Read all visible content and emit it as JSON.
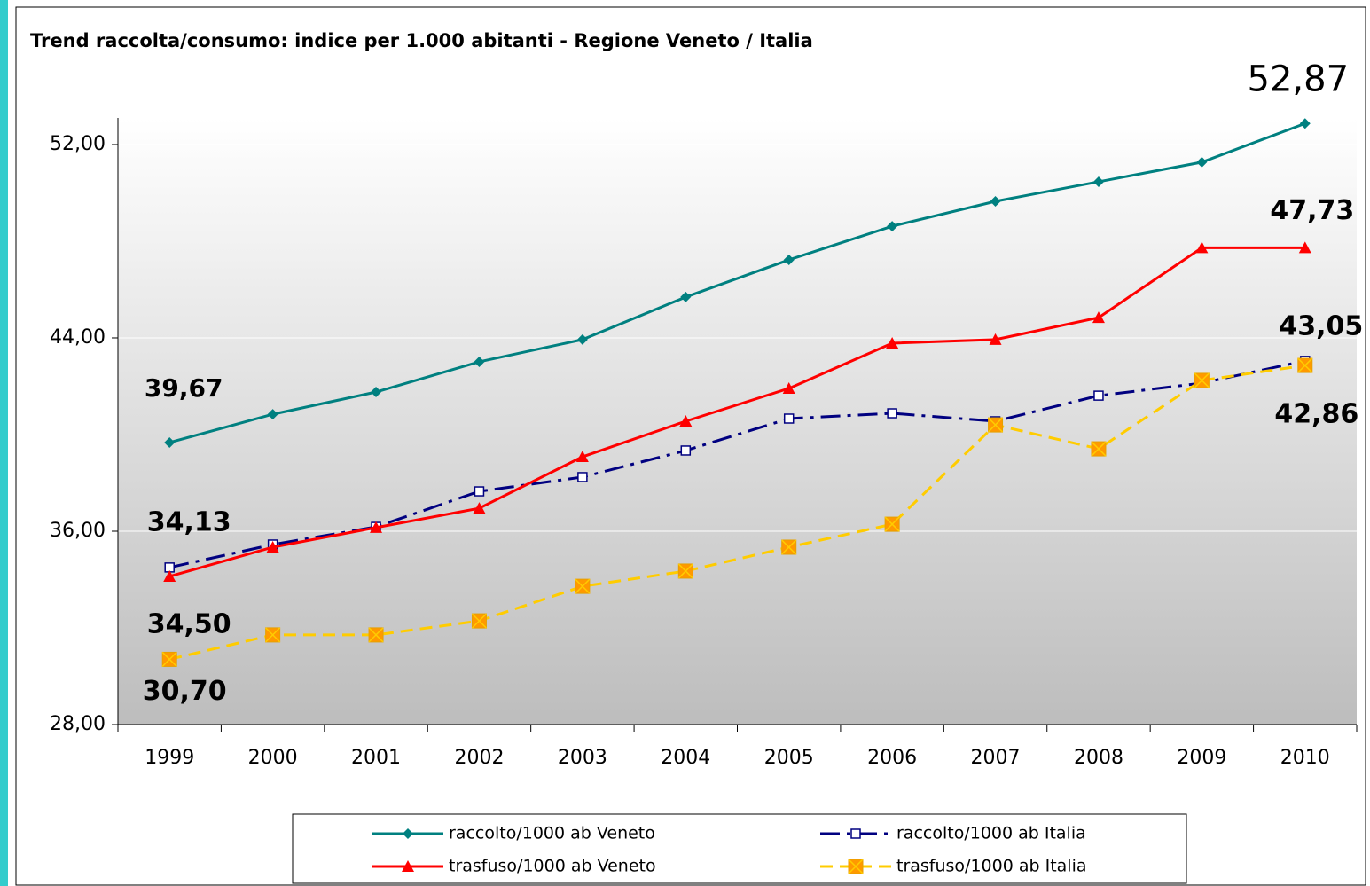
{
  "chart_data": {
    "type": "line",
    "title": "Trend raccolta/consumo: indice per 1.000 abitanti - Regione Veneto / Italia",
    "categories": [
      "1999",
      "2000",
      "2001",
      "2002",
      "2003",
      "2004",
      "2005",
      "2006",
      "2007",
      "2008",
      "2009",
      "2010"
    ],
    "ylim": [
      28,
      53.1
    ],
    "yticks": [
      {
        "value": 28,
        "label": "28,00"
      },
      {
        "value": 36,
        "label": "36,00"
      },
      {
        "value": 44,
        "label": "44,00"
      },
      {
        "value": 52,
        "label": "52,00"
      }
    ],
    "grid": true,
    "legend": "bottom",
    "series": [
      {
        "name": "raccolto/1000 ab Veneto",
        "color": "#008080",
        "marker": "diamond",
        "dash": "solid",
        "values": [
          39.67,
          40.84,
          41.76,
          43.01,
          43.93,
          45.69,
          47.23,
          48.62,
          49.65,
          50.46,
          51.27,
          52.87
        ],
        "value_labels": [
          "39,67",
          null,
          null,
          null,
          null,
          null,
          null,
          null,
          null,
          null,
          null,
          "52,87"
        ]
      },
      {
        "name": "raccolto/1000 ab Italia",
        "color": "#000080",
        "marker": "square-open",
        "dash": "dashdot",
        "values": [
          34.5,
          35.45,
          36.18,
          37.65,
          38.24,
          39.34,
          40.66,
          40.88,
          40.55,
          41.61,
          42.13,
          43.05
        ],
        "value_labels": [
          "34,50",
          null,
          null,
          null,
          null,
          null,
          null,
          null,
          null,
          null,
          null,
          "43,05"
        ]
      },
      {
        "name": "trasfuso/1000 ab Veneto",
        "color": "#ff0000",
        "marker": "triangle",
        "dash": "solid",
        "values": [
          34.13,
          35.34,
          36.15,
          36.95,
          39.08,
          40.55,
          41.91,
          43.78,
          43.93,
          44.84,
          47.73,
          47.73
        ],
        "value_labels": [
          "34,13",
          null,
          null,
          null,
          null,
          null,
          null,
          null,
          null,
          null,
          null,
          "47,73"
        ]
      },
      {
        "name": "trasfuso/1000 ab Italia",
        "color": "#ffcc00",
        "marker": "square-x",
        "dash": "dashed",
        "values": [
          30.7,
          31.71,
          31.71,
          32.29,
          33.72,
          34.35,
          35.34,
          36.29,
          40.4,
          39.41,
          42.24,
          42.86
        ],
        "value_labels": [
          "30,70",
          null,
          null,
          null,
          null,
          null,
          null,
          null,
          null,
          null,
          null,
          "42,86"
        ]
      }
    ]
  }
}
